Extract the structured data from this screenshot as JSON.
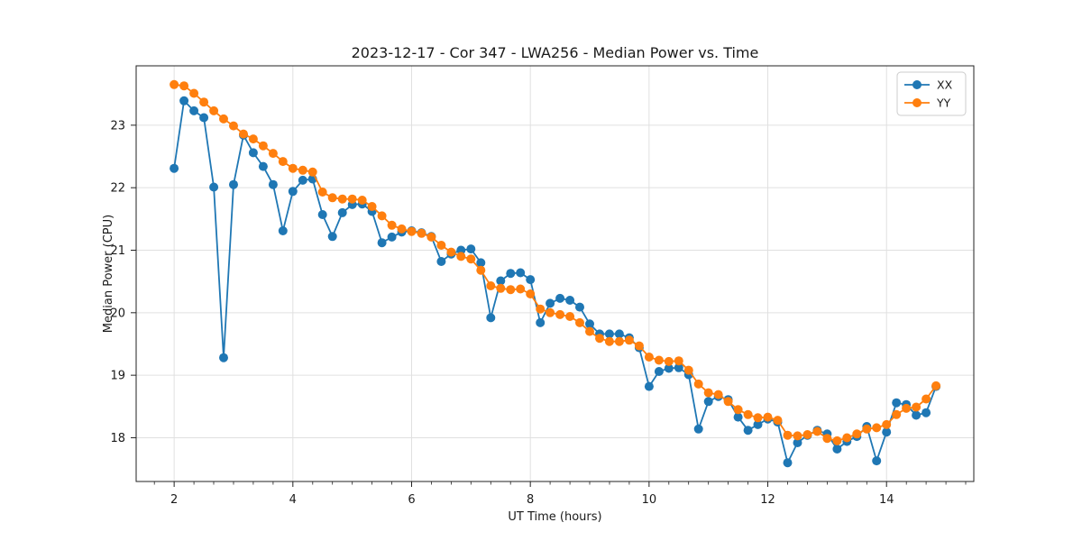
{
  "figure": {
    "background": "#ffffff"
  },
  "chart_data": {
    "type": "line",
    "title": "2023-12-17 - Cor 347 - LWA256 - Median Power vs. Time",
    "xlabel": "UT Time (hours)",
    "ylabel": "Median Power (CPU)",
    "xlim": [
      1.36,
      15.47
    ],
    "ylim": [
      17.3,
      23.95
    ],
    "xticks": [
      2,
      4,
      6,
      8,
      10,
      12,
      14
    ],
    "yticks": [
      18,
      19,
      20,
      21,
      22,
      23
    ],
    "x_minor_step": 0.3333333,
    "grid": true,
    "grid_color": "#e0e0e0",
    "spine_color": "#222222",
    "text_color": "#1a1a1a",
    "legend_position": "upper right",
    "legend_labels": [
      "XX",
      "YY"
    ],
    "x": [
      2.0,
      2.167,
      2.333,
      2.5,
      2.667,
      2.833,
      3.0,
      3.167,
      3.333,
      3.5,
      3.667,
      3.833,
      4.0,
      4.167,
      4.333,
      4.5,
      4.667,
      4.833,
      5.0,
      5.167,
      5.333,
      5.5,
      5.667,
      5.833,
      6.0,
      6.167,
      6.333,
      6.5,
      6.667,
      6.833,
      7.0,
      7.167,
      7.333,
      7.5,
      7.667,
      7.833,
      8.0,
      8.167,
      8.333,
      8.5,
      8.667,
      8.833,
      9.0,
      9.167,
      9.333,
      9.5,
      9.667,
      9.833,
      10.0,
      10.167,
      10.333,
      10.5,
      10.667,
      10.833,
      11.0,
      11.167,
      11.333,
      11.5,
      11.667,
      11.833,
      12.0,
      12.167,
      12.333,
      12.5,
      12.667,
      12.833,
      13.0,
      13.167,
      13.333,
      13.5,
      13.667,
      13.833,
      14.0,
      14.167,
      14.333,
      14.5,
      14.667,
      14.833
    ],
    "series": [
      {
        "name": "XX",
        "color": "#1f77b4",
        "values": [
          22.31,
          23.39,
          23.23,
          23.12,
          22.01,
          19.28,
          22.05,
          22.84,
          22.56,
          22.34,
          22.05,
          21.31,
          21.94,
          22.12,
          22.14,
          21.57,
          21.22,
          21.6,
          21.73,
          21.74,
          21.62,
          21.12,
          21.21,
          21.29,
          21.31,
          21.28,
          21.22,
          20.82,
          20.94,
          21.0,
          21.02,
          20.8,
          19.92,
          20.51,
          20.63,
          20.64,
          20.53,
          19.84,
          20.15,
          20.23,
          20.2,
          20.09,
          19.82,
          19.66,
          19.66,
          19.66,
          19.6,
          19.44,
          18.82,
          19.06,
          19.11,
          19.12,
          19.01,
          18.14,
          18.58,
          18.66,
          18.61,
          18.33,
          18.12,
          18.21,
          18.3,
          18.25,
          17.6,
          17.92,
          18.04,
          18.12,
          18.06,
          17.82,
          17.94,
          18.02,
          18.18,
          17.63,
          18.09,
          18.56,
          18.53,
          18.36,
          18.4,
          18.82
        ]
      },
      {
        "name": "YY",
        "color": "#ff7f0e",
        "values": [
          23.65,
          23.63,
          23.51,
          23.37,
          23.23,
          23.1,
          22.99,
          22.86,
          22.78,
          22.67,
          22.55,
          22.42,
          22.31,
          22.28,
          22.25,
          21.93,
          21.84,
          21.82,
          21.82,
          21.8,
          21.7,
          21.55,
          21.4,
          21.34,
          21.3,
          21.27,
          21.21,
          21.08,
          20.97,
          20.9,
          20.86,
          20.68,
          20.43,
          20.39,
          20.37,
          20.38,
          20.3,
          20.06,
          20.0,
          19.97,
          19.94,
          19.84,
          19.7,
          19.59,
          19.54,
          19.54,
          19.56,
          19.47,
          19.29,
          19.24,
          19.22,
          19.23,
          19.08,
          18.86,
          18.72,
          18.69,
          18.58,
          18.45,
          18.37,
          18.32,
          18.33,
          18.28,
          18.04,
          18.03,
          18.05,
          18.1,
          17.99,
          17.95,
          18.0,
          18.06,
          18.14,
          18.16,
          18.21,
          18.37,
          18.47,
          18.49,
          18.62,
          18.83
        ]
      }
    ]
  }
}
